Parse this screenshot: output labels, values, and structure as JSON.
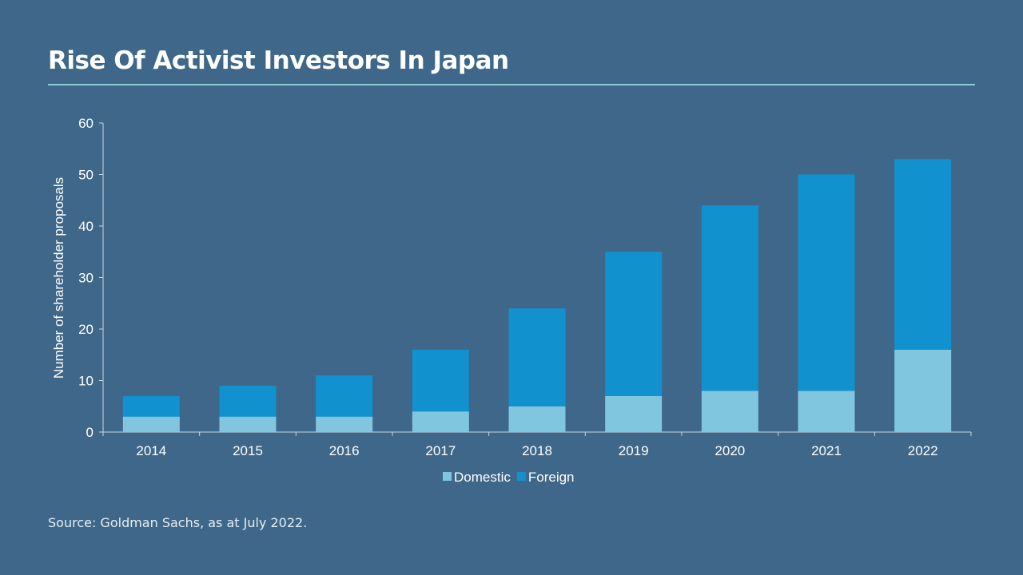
{
  "slide": {
    "title": "Rise Of Activist Investors In Japan",
    "source": "Source: Goldman Sachs, as at July 2022."
  },
  "colors": {
    "background": "#3e6789",
    "domestic": "#80c6de",
    "foreign": "#1191cd",
    "axis": "#c9d6e2",
    "title_rule": "#8ecbd6"
  },
  "chart_data": {
    "type": "bar",
    "stacked": true,
    "title": "Rise Of Activist Investors In Japan",
    "xlabel": "",
    "ylabel": "Number of shareholder proposals",
    "ylim": [
      0,
      60
    ],
    "yticks": [
      0,
      10,
      20,
      30,
      40,
      50,
      60
    ],
    "grid": false,
    "legend_position": "bottom",
    "categories": [
      "2014",
      "2015",
      "2016",
      "2017",
      "2018",
      "2019",
      "2020",
      "2021",
      "2022"
    ],
    "series": [
      {
        "name": "Domestic",
        "values": [
          3,
          3,
          3,
          4,
          5,
          7,
          8,
          8,
          16
        ]
      },
      {
        "name": "Foreign",
        "values": [
          4,
          6,
          8,
          12,
          19,
          28,
          36,
          42,
          37
        ]
      }
    ],
    "totals": [
      7,
      9,
      11,
      16,
      24,
      35,
      44,
      50,
      53
    ]
  }
}
